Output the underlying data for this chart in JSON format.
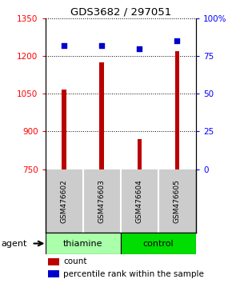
{
  "title": "GDS3682 / 297051",
  "samples": [
    "GSM476602",
    "GSM476603",
    "GSM476604",
    "GSM476605"
  ],
  "counts": [
    1068,
    1175,
    870,
    1220
  ],
  "percentiles": [
    82,
    82,
    80,
    85
  ],
  "ylim_left": [
    750,
    1350
  ],
  "ylim_right": [
    0,
    100
  ],
  "yticks_left": [
    750,
    900,
    1050,
    1200,
    1350
  ],
  "yticks_right": [
    0,
    25,
    50,
    75,
    100
  ],
  "ytick_labels_right": [
    "0",
    "25",
    "50",
    "75",
    "100%"
  ],
  "bar_color": "#bb0000",
  "dot_color": "#0000cc",
  "bar_width": 0.12,
  "groups": [
    {
      "label": "thiamine",
      "samples": [
        0,
        1
      ],
      "color": "#aaffaa"
    },
    {
      "label": "control",
      "samples": [
        2,
        3
      ],
      "color": "#00dd00"
    }
  ],
  "xlabel_area_bg": "#cccccc",
  "agent_label": "agent",
  "background_color": "#ffffff",
  "legend_count_label": "count",
  "legend_pct_label": "percentile rank within the sample"
}
